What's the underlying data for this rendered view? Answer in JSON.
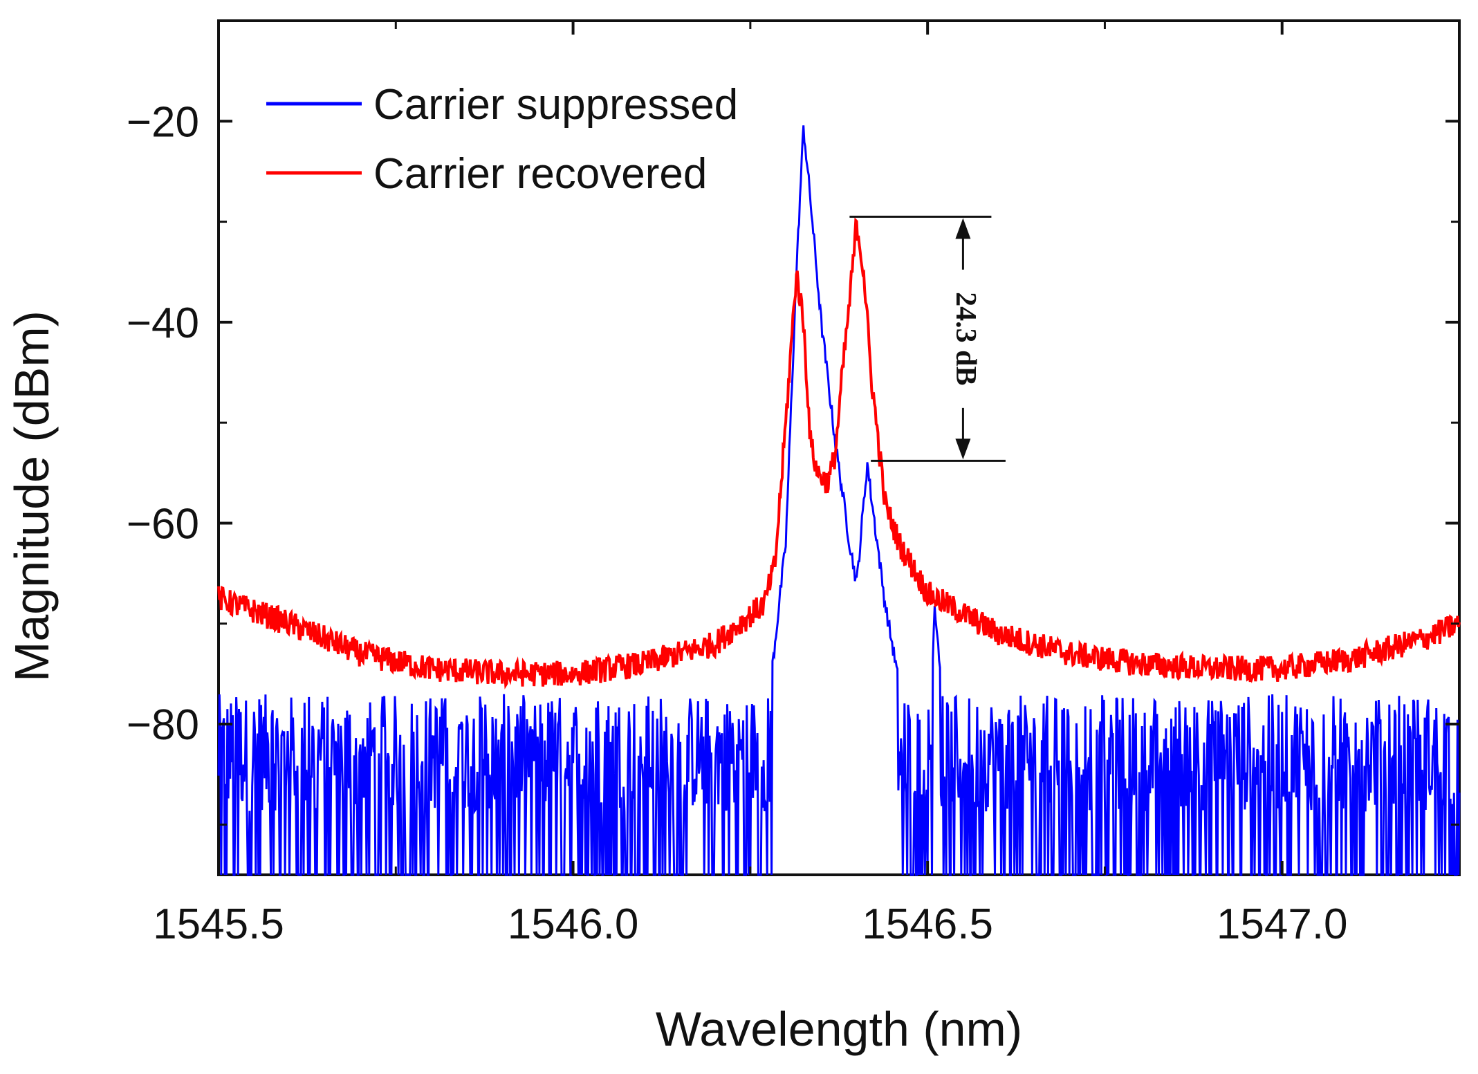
{
  "chart_data": {
    "type": "line",
    "title": "",
    "xlabel": "Wavelength (nm)",
    "ylabel": "Magnitude (dBm)",
    "xlim": [
      1545.5,
      1547.25
    ],
    "ylim": [
      -95,
      -10
    ],
    "x_ticks": [
      1545.5,
      1546.0,
      1546.5,
      1547.0
    ],
    "x_tick_labels": [
      "1545.5",
      "1546.0",
      "1546.5",
      "1547.0"
    ],
    "y_ticks": [
      -20,
      -40,
      -60,
      -80
    ],
    "y_tick_labels": [
      "−20",
      "−40",
      "−60",
      "−80"
    ],
    "legend_position": "top-left",
    "grid": false,
    "series": [
      {
        "name": "Carrier suppressed",
        "color": "#0000ff",
        "style": "noisy",
        "floor_min": -95,
        "floor_max": -77,
        "points": [
          [
            1545.5,
            -86
          ],
          [
            1546.0,
            -86
          ],
          [
            1546.26,
            -86
          ],
          [
            1546.265,
            -80
          ],
          [
            1546.28,
            -75
          ],
          [
            1546.3,
            -62
          ],
          [
            1546.315,
            -35
          ],
          [
            1546.325,
            -20.5
          ],
          [
            1546.335,
            -28
          ],
          [
            1546.35,
            -40
          ],
          [
            1546.37,
            -52
          ],
          [
            1546.39,
            -62
          ],
          [
            1546.4,
            -66
          ],
          [
            1546.41,
            -58
          ],
          [
            1546.415,
            -54
          ],
          [
            1546.42,
            -57
          ],
          [
            1546.44,
            -68
          ],
          [
            1546.46,
            -76
          ],
          [
            1546.48,
            -80
          ],
          [
            1546.495,
            -88
          ],
          [
            1546.505,
            -78
          ],
          [
            1546.51,
            -68
          ],
          [
            1546.515,
            -72
          ],
          [
            1546.53,
            -86
          ],
          [
            1547.25,
            -86
          ]
        ]
      },
      {
        "name": "Carrier recovered",
        "color": "#ff0000",
        "style": "noisy",
        "points": [
          [
            1545.5,
            -67.5
          ],
          [
            1545.6,
            -70
          ],
          [
            1545.7,
            -73
          ],
          [
            1545.8,
            -74.5
          ],
          [
            1545.9,
            -75
          ],
          [
            1546.0,
            -75
          ],
          [
            1546.1,
            -74
          ],
          [
            1546.2,
            -72
          ],
          [
            1546.27,
            -68
          ],
          [
            1546.285,
            -64
          ],
          [
            1546.3,
            -50
          ],
          [
            1546.315,
            -35
          ],
          [
            1546.325,
            -40
          ],
          [
            1546.335,
            -52
          ],
          [
            1546.345,
            -55
          ],
          [
            1546.36,
            -56
          ],
          [
            1546.37,
            -53
          ],
          [
            1546.38,
            -45
          ],
          [
            1546.39,
            -38
          ],
          [
            1546.4,
            -30
          ],
          [
            1546.41,
            -35
          ],
          [
            1546.42,
            -45
          ],
          [
            1546.44,
            -58
          ],
          [
            1546.46,
            -62
          ],
          [
            1546.5,
            -67
          ],
          [
            1546.6,
            -71
          ],
          [
            1546.7,
            -73
          ],
          [
            1546.8,
            -74
          ],
          [
            1546.9,
            -74.5
          ],
          [
            1547.0,
            -74.5
          ],
          [
            1547.1,
            -73.5
          ],
          [
            1547.2,
            -71.5
          ],
          [
            1547.25,
            -70
          ]
        ]
      }
    ],
    "annotations": [
      {
        "text": "24.3 dB",
        "x": 1546.55,
        "y_top": -29.5,
        "y_bottom": -53.8,
        "line_top_x_start": 1546.39,
        "line_top_x_end": 1546.59,
        "line_bottom_x_start": 1546.42,
        "line_bottom_x_end": 1546.61
      }
    ]
  }
}
